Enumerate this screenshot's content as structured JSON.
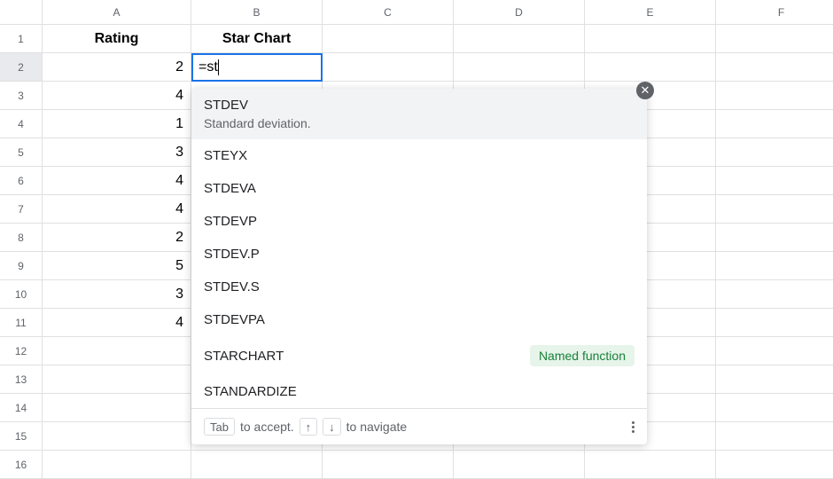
{
  "columns": [
    "A",
    "B",
    "C",
    "D",
    "E",
    "F"
  ],
  "header_row": {
    "A": "Rating",
    "B": "Star Chart"
  },
  "data_rows": [
    {
      "num": 1
    },
    {
      "num": 2,
      "A": "2",
      "active": true
    },
    {
      "num": 3,
      "A": "4"
    },
    {
      "num": 4,
      "A": "1"
    },
    {
      "num": 5,
      "A": "3"
    },
    {
      "num": 6,
      "A": "4"
    },
    {
      "num": 7,
      "A": "4"
    },
    {
      "num": 8,
      "A": "2"
    },
    {
      "num": 9,
      "A": "5"
    },
    {
      "num": 10,
      "A": "3"
    },
    {
      "num": 11,
      "A": "4"
    },
    {
      "num": 12
    },
    {
      "num": 13
    },
    {
      "num": 14
    },
    {
      "num": 15
    },
    {
      "num": 16
    }
  ],
  "active_cell": {
    "formula": "=st"
  },
  "autocomplete": {
    "items": [
      {
        "name": "STDEV",
        "desc": "Standard deviation.",
        "highlight": true
      },
      {
        "name": "STEYX"
      },
      {
        "name": "STDEVA"
      },
      {
        "name": "STDEVP"
      },
      {
        "name": "STDEV.P"
      },
      {
        "name": "STDEV.S"
      },
      {
        "name": "STDEVPA"
      },
      {
        "name": "STARCHART",
        "badge": "Named function"
      },
      {
        "name": "STANDARDIZE"
      }
    ],
    "footer": {
      "tab_key": "Tab",
      "tab_text": "to accept.",
      "nav_up": "↑",
      "nav_down": "↓",
      "nav_text": "to navigate"
    }
  },
  "colors": {
    "active_border": "#1a73e8",
    "grid": "#e0e0e0",
    "muted": "#5f6368",
    "badge_bg": "#e6f4ea",
    "badge_fg": "#188038"
  }
}
